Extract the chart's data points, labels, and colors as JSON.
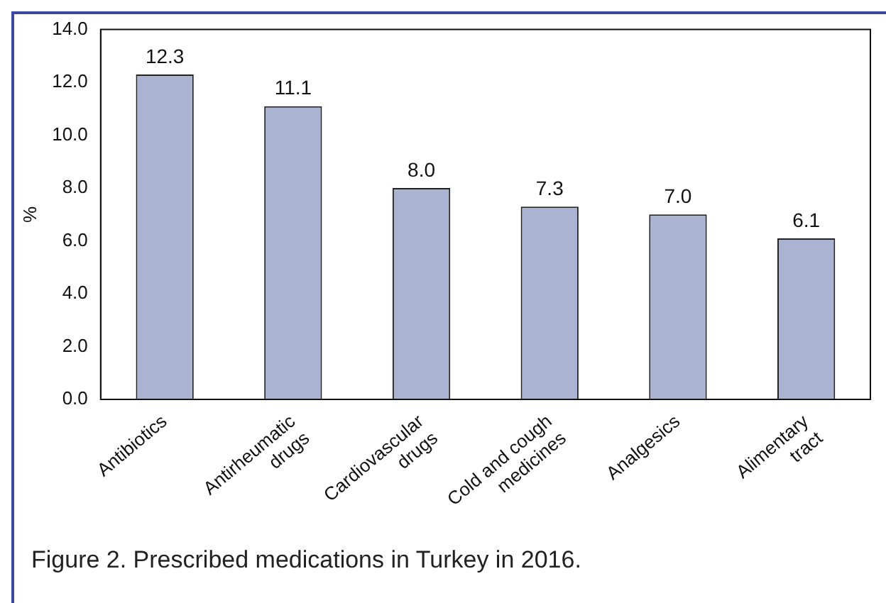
{
  "chart_data": {
    "type": "bar",
    "ylabel": "%",
    "categories": [
      "Antibiotics",
      "Antirheumatic\ndrugs",
      "Cardiovascular\ndrugs",
      "Cold and cough\nmedicines",
      "Analgesics",
      "Alimentary\ntract"
    ],
    "values": [
      12.3,
      11.1,
      8.0,
      7.3,
      7.0,
      6.1
    ],
    "color": "#aab3d1",
    "ylim": [
      0,
      14
    ],
    "yticks": [
      {
        "value": 0,
        "label": "0.0"
      },
      {
        "value": 2,
        "label": "2.0"
      },
      {
        "value": 4,
        "label": "4.0"
      },
      {
        "value": 6,
        "label": "6.0"
      },
      {
        "value": 8,
        "label": "8.0"
      },
      {
        "value": 10,
        "label": "10.0"
      },
      {
        "value": 12,
        "label": "12.0"
      },
      {
        "value": 14,
        "label": "14.0"
      }
    ],
    "value_labels": [
      "12.3",
      "11.1",
      "8.0",
      "7.3",
      "7.0",
      "6.1"
    ],
    "grid": false,
    "legend": false,
    "annotations": [
      "Figure 2. Prescribed medications in Turkey in 2016."
    ]
  }
}
